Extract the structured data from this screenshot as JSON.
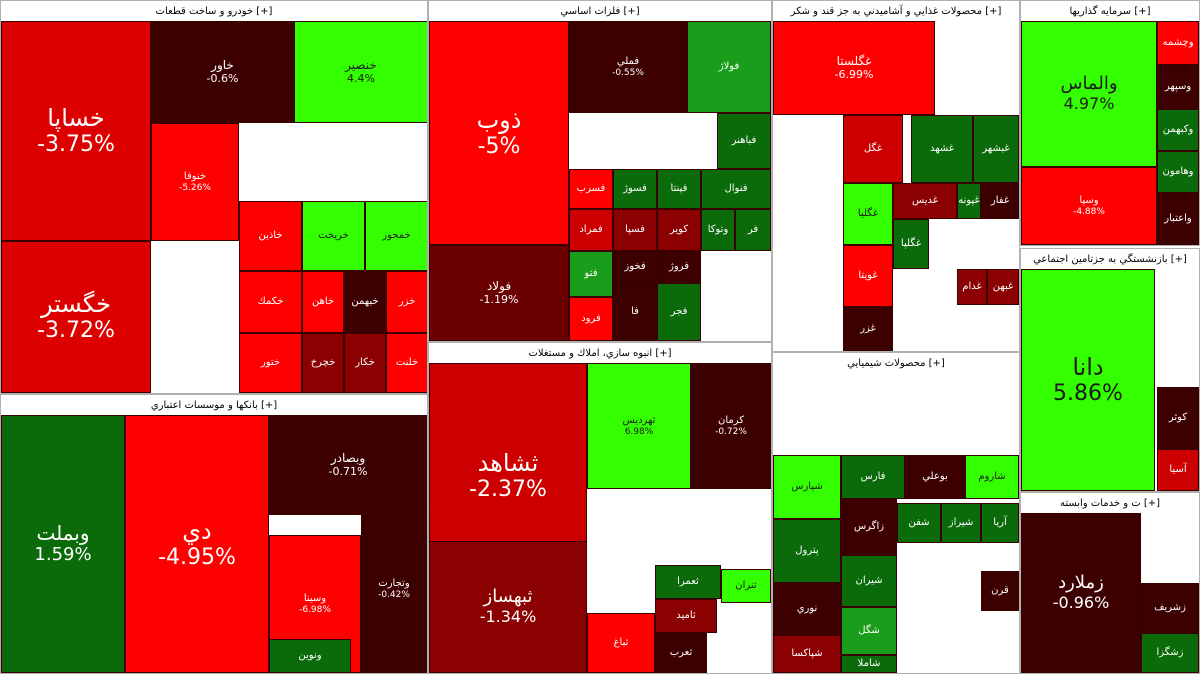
{
  "colors": {
    "red": "#ff0000",
    "mid_red": "#cc0000",
    "dark_red": "#8b0000",
    "deep_red": "#3d0000",
    "green": "#33ff00",
    "dark_green": "#0b6b0b",
    "mid_green": "#1a9d1a"
  },
  "sectors": [
    {
      "id": "auto",
      "title": "خودرو و ساخت قطعات [+]",
      "tiles": [
        {
          "name": "خساپا",
          "change": "-3.75%",
          "color": "#dd0000",
          "size": "xl"
        },
        {
          "name": "خگستر",
          "change": "-3.72%",
          "color": "#dd0000",
          "size": "xl"
        },
        {
          "name": "خاور",
          "change": "-0.6%",
          "color": "#3d0000",
          "size": "m"
        },
        {
          "name": "خنصير",
          "change": "4.4%",
          "color": "#33ff00",
          "size": "m",
          "dark": true
        },
        {
          "name": "خنوفا",
          "change": "-5.26%",
          "color": "#ff0000",
          "size": "s"
        },
        {
          "name": "خاذين",
          "change": "",
          "color": "#ff0000",
          "size": "s"
        },
        {
          "name": "خريخت",
          "change": "",
          "color": "#33ff00",
          "size": "s",
          "dark": true
        },
        {
          "name": "خمحور",
          "change": "",
          "color": "#33ff00",
          "size": "s",
          "dark": true
        },
        {
          "name": "خكمك",
          "change": "",
          "color": "#ff0000",
          "size": "s"
        },
        {
          "name": "خاهن",
          "change": "",
          "color": "#ff0000",
          "size": "s"
        },
        {
          "name": "خبهمن",
          "change": "",
          "color": "#3d0000",
          "size": "s"
        },
        {
          "name": "خزر",
          "change": "",
          "color": "#ff0000",
          "size": "s"
        },
        {
          "name": "ختور",
          "change": "",
          "color": "#ff0000",
          "size": "s"
        },
        {
          "name": "خچرخ",
          "change": "",
          "color": "#8b0000",
          "size": "s"
        },
        {
          "name": "خكار",
          "change": "",
          "color": "#8b0000",
          "size": "s"
        },
        {
          "name": "خلنت",
          "change": "",
          "color": "#ff0000",
          "size": "s"
        }
      ]
    },
    {
      "id": "metals",
      "title": "فلزات اساسي [+]",
      "tiles": [
        {
          "name": "ذوب",
          "change": "-5%",
          "color": "#ff0000",
          "size": "xl"
        },
        {
          "name": "فولاد",
          "change": "-1.19%",
          "color": "#6b0000",
          "size": "m"
        },
        {
          "name": "فملي",
          "change": "-0.55%",
          "color": "#3d0000",
          "size": "s"
        },
        {
          "name": "فولاژ",
          "change": "",
          "color": "#1a9d1a",
          "size": "s"
        },
        {
          "name": "فباهنر",
          "change": "",
          "color": "#0b6b0b",
          "size": "s"
        },
        {
          "name": "فسرب",
          "change": "",
          "color": "#ff0000",
          "size": "s"
        },
        {
          "name": "فسوژ",
          "change": "",
          "color": "#0b6b0b",
          "size": "s"
        },
        {
          "name": "فپنتا",
          "change": "",
          "color": "#0b6b0b",
          "size": "s"
        },
        {
          "name": "فنوال",
          "change": "",
          "color": "#0b6b0b",
          "size": "s"
        },
        {
          "name": "فمراد",
          "change": "",
          "color": "#cc0000",
          "size": "s"
        },
        {
          "name": "فسپا",
          "change": "",
          "color": "#8b0000",
          "size": "s"
        },
        {
          "name": "كوير",
          "change": "",
          "color": "#8b0000",
          "size": "s"
        },
        {
          "name": "وتوكا",
          "change": "",
          "color": "#0b6b0b",
          "size": "s"
        },
        {
          "name": "فر",
          "change": "",
          "color": "#0b6b0b",
          "size": "s"
        },
        {
          "name": "فخوز",
          "change": "",
          "color": "#3d0000",
          "size": "s"
        },
        {
          "name": "فتو",
          "change": "",
          "color": "#1a9d1a",
          "size": "s"
        },
        {
          "name": "فروژ",
          "change": "",
          "color": "#3d0000",
          "size": "s"
        },
        {
          "name": "فرود",
          "change": "",
          "color": "#ff0000",
          "size": "s"
        },
        {
          "name": "فا",
          "change": "",
          "color": "#3d0000",
          "size": "s"
        },
        {
          "name": "فجر",
          "change": "",
          "color": "#0b6b0b",
          "size": "s"
        }
      ]
    },
    {
      "id": "food",
      "title": "محصولات غذايي و آشاميدني به جز قند و شكر [+]",
      "tiles": [
        {
          "name": "غگلستا",
          "change": "-6.99%",
          "color": "#ff0000",
          "size": "m"
        },
        {
          "name": "غگل",
          "change": "",
          "color": "#cc0000",
          "size": "s"
        },
        {
          "name": "غشهد",
          "change": "",
          "color": "#0b6b0b",
          "size": "s"
        },
        {
          "name": "غبشهر",
          "change": "",
          "color": "#0b6b0b",
          "size": "s"
        },
        {
          "name": "غگليا",
          "change": "",
          "color": "#33ff00",
          "size": "s",
          "dark": true
        },
        {
          "name": "غديس",
          "change": "",
          "color": "#8b0000",
          "size": "s"
        },
        {
          "name": "غپونه",
          "change": "",
          "color": "#0b6b0b",
          "size": "s"
        },
        {
          "name": "غفار",
          "change": "",
          "color": "#3d0000",
          "size": "s"
        },
        {
          "name": "غگلپا",
          "change": "",
          "color": "#0b6b0b",
          "size": "s"
        },
        {
          "name": "غويتا",
          "change": "",
          "color": "#ff0000",
          "size": "s"
        },
        {
          "name": "غزر",
          "change": "",
          "color": "#3d0000",
          "size": "s"
        },
        {
          "name": "غدام",
          "change": "",
          "color": "#8b0000",
          "size": "s"
        },
        {
          "name": "غبهن",
          "change": "",
          "color": "#8b0000",
          "size": "s"
        }
      ]
    },
    {
      "id": "investment",
      "title": "سرمايه گذاريها [+]",
      "tiles": [
        {
          "name": "والماس",
          "change": "4.97%",
          "color": "#33ff00",
          "size": "l",
          "dark": true
        },
        {
          "name": "وسپا",
          "change": "-4.88%",
          "color": "#ff0000",
          "size": "s"
        },
        {
          "name": "وچشمه",
          "change": "",
          "color": "#ff0000",
          "size": "s"
        },
        {
          "name": "وسپهر",
          "change": "",
          "color": "#3d0000",
          "size": "s"
        },
        {
          "name": "وكبهمن",
          "change": "",
          "color": "#0b6b0b",
          "size": "s"
        },
        {
          "name": "وهامون",
          "change": "",
          "color": "#0b6b0b",
          "size": "s"
        },
        {
          "name": "واعتبار",
          "change": "",
          "color": "#3d0000",
          "size": "s"
        }
      ]
    },
    {
      "id": "banks",
      "title": "بانكها و موسسات اعتباري [+]",
      "tiles": [
        {
          "name": "وبملت",
          "change": "1.59%",
          "color": "#0b6b0b",
          "size": "xl"
        },
        {
          "name": "دي",
          "change": "-4.95%",
          "color": "#ff0000",
          "size": "xl"
        },
        {
          "name": "وبصادر",
          "change": "-0.71%",
          "color": "#3d0000",
          "size": "m"
        },
        {
          "name": "وسينا",
          "change": "-6.98%",
          "color": "#ff0000",
          "size": "s"
        },
        {
          "name": "وتجارت",
          "change": "-0.42%",
          "color": "#3d0000",
          "size": "s"
        },
        {
          "name": "ونوين",
          "change": "",
          "color": "#0b6b0b",
          "size": "s"
        }
      ]
    },
    {
      "id": "realestate",
      "title": "انبوه سازي، املاك و مستغلات [+]",
      "tiles": [
        {
          "name": "ثشاهد",
          "change": "-2.37%",
          "color": "#cc0000",
          "size": "xl"
        },
        {
          "name": "ثبهساز",
          "change": "-1.34%",
          "color": "#8b0000",
          "size": "l"
        },
        {
          "name": "ثهرديس",
          "change": "6.98%",
          "color": "#33ff00",
          "size": "s",
          "dark": true
        },
        {
          "name": "كرمان",
          "change": "-0.72%",
          "color": "#3d0000",
          "size": "s"
        },
        {
          "name": "ثعمرا",
          "change": "",
          "color": "#0b6b0b",
          "size": "s"
        },
        {
          "name": "ثنران",
          "change": "",
          "color": "#33ff00",
          "size": "s",
          "dark": true
        },
        {
          "name": "ثاميد",
          "change": "",
          "color": "#8b0000",
          "size": "s"
        },
        {
          "name": "ثباغ",
          "change": "",
          "color": "#ff0000",
          "size": "s"
        },
        {
          "name": "ثعرب",
          "change": "",
          "color": "#3d0000",
          "size": "s"
        }
      ]
    },
    {
      "id": "chemicals",
      "title": "محصولات شيميايي [+]",
      "tiles": [
        {
          "name": "شپارس",
          "change": "",
          "color": "#33ff00",
          "size": "s",
          "dark": true
        },
        {
          "name": "فارس",
          "change": "",
          "color": "#0b6b0b",
          "size": "s"
        },
        {
          "name": "بوعلي",
          "change": "",
          "color": "#3d0000",
          "size": "s"
        },
        {
          "name": "شاروم",
          "change": "",
          "color": "#33ff00",
          "size": "s",
          "dark": true
        },
        {
          "name": "زاگرس",
          "change": "",
          "color": "#3d0000",
          "size": "s"
        },
        {
          "name": "شفن",
          "change": "",
          "color": "#0b6b0b",
          "size": "s"
        },
        {
          "name": "شيراز",
          "change": "",
          "color": "#0b6b0b",
          "size": "s"
        },
        {
          "name": "آريا",
          "change": "",
          "color": "#0b6b0b",
          "size": "s"
        },
        {
          "name": "پترول",
          "change": "",
          "color": "#0b6b0b",
          "size": "s"
        },
        {
          "name": "شيران",
          "change": "",
          "color": "#0b6b0b",
          "size": "s"
        },
        {
          "name": "قرن",
          "change": "",
          "color": "#3d0000",
          "size": "s"
        },
        {
          "name": "نوري",
          "change": "",
          "color": "#3d0000",
          "size": "s"
        },
        {
          "name": "شگل",
          "change": "",
          "color": "#1a9d1a",
          "size": "s"
        },
        {
          "name": "شپاكسا",
          "change": "",
          "color": "#8b0000",
          "size": "s"
        },
        {
          "name": "شاملا",
          "change": "",
          "color": "#0b6b0b",
          "size": "s"
        }
      ]
    },
    {
      "id": "pension",
      "title": "بازنشستگي به جزتامين اجتماعي [+]",
      "tiles": [
        {
          "name": "دانا",
          "change": "5.86%",
          "color": "#33ff00",
          "size": "xl",
          "dark": true
        },
        {
          "name": "كوثر",
          "change": "",
          "color": "#3d0000",
          "size": "s"
        },
        {
          "name": "آسيا",
          "change": "",
          "color": "#cc0000",
          "size": "s"
        }
      ]
    },
    {
      "id": "services",
      "title": "ت و خدمات وابسته [+]",
      "tiles": [
        {
          "name": "زملارد",
          "change": "-0.96%",
          "color": "#3d0000",
          "size": "l"
        },
        {
          "name": "زشريف",
          "change": "",
          "color": "#3d0000",
          "size": "s"
        },
        {
          "name": "زشگزا",
          "change": "",
          "color": "#0b6b0b",
          "size": "s"
        }
      ]
    }
  ]
}
